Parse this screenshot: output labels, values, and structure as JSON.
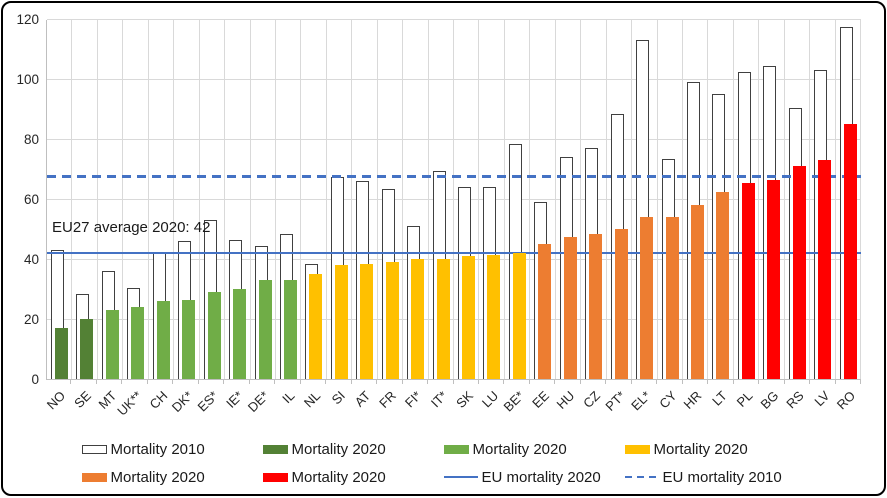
{
  "chart_data": {
    "type": "bar",
    "title": "",
    "xlabel": "",
    "ylabel": "",
    "ylim": [
      0,
      120
    ],
    "yticks": [
      0,
      20,
      40,
      60,
      80,
      100,
      120
    ],
    "grid": true,
    "annotation": {
      "text": "EU27 average 2020: 42"
    },
    "series_names": [
      "Mortality 2010",
      "Mortality 2020"
    ],
    "points": [
      {
        "label": "NO",
        "mortality_2010": 43,
        "mortality_2020": 17,
        "group": "dark_green"
      },
      {
        "label": "SE",
        "mortality_2010": 28.5,
        "mortality_2020": 20,
        "group": "dark_green"
      },
      {
        "label": "MT",
        "mortality_2010": 36,
        "mortality_2020": 23,
        "group": "green"
      },
      {
        "label": "UK**",
        "mortality_2010": 30.5,
        "mortality_2020": 24,
        "group": "green"
      },
      {
        "label": "CH",
        "mortality_2010": 42,
        "mortality_2020": 26,
        "group": "green"
      },
      {
        "label": "DK*",
        "mortality_2010": 46,
        "mortality_2020": 26.5,
        "group": "green"
      },
      {
        "label": "ES*",
        "mortality_2010": 53,
        "mortality_2020": 29,
        "group": "green"
      },
      {
        "label": "IE*",
        "mortality_2010": 46.5,
        "mortality_2020": 30,
        "group": "green"
      },
      {
        "label": "DE*",
        "mortality_2010": 44.5,
        "mortality_2020": 33,
        "group": "green"
      },
      {
        "label": "IL",
        "mortality_2010": 48.5,
        "mortality_2020": 33,
        "group": "green"
      },
      {
        "label": "NL",
        "mortality_2010": 38.5,
        "mortality_2020": 35,
        "group": "yellow"
      },
      {
        "label": "SI",
        "mortality_2010": 67.5,
        "mortality_2020": 38,
        "group": "yellow"
      },
      {
        "label": "AT",
        "mortality_2010": 66,
        "mortality_2020": 38.5,
        "group": "yellow"
      },
      {
        "label": "FR",
        "mortality_2010": 63.5,
        "mortality_2020": 39,
        "group": "yellow"
      },
      {
        "label": "FI*",
        "mortality_2010": 51,
        "mortality_2020": 40,
        "group": "yellow"
      },
      {
        "label": "IT*",
        "mortality_2010": 69.5,
        "mortality_2020": 40,
        "group": "yellow"
      },
      {
        "label": "SK",
        "mortality_2010": 64,
        "mortality_2020": 41,
        "group": "yellow"
      },
      {
        "label": "LU",
        "mortality_2010": 64,
        "mortality_2020": 41.5,
        "group": "yellow"
      },
      {
        "label": "BE*",
        "mortality_2010": 78.5,
        "mortality_2020": 42,
        "group": "yellow"
      },
      {
        "label": "EE",
        "mortality_2010": 59,
        "mortality_2020": 45,
        "group": "orange"
      },
      {
        "label": "HU",
        "mortality_2010": 74,
        "mortality_2020": 47.5,
        "group": "orange"
      },
      {
        "label": "CZ",
        "mortality_2010": 77,
        "mortality_2020": 48.5,
        "group": "orange"
      },
      {
        "label": "PT*",
        "mortality_2010": 88.5,
        "mortality_2020": 50,
        "group": "orange"
      },
      {
        "label": "EL*",
        "mortality_2010": 113,
        "mortality_2020": 54,
        "group": "orange"
      },
      {
        "label": "CY",
        "mortality_2010": 73.5,
        "mortality_2020": 54,
        "group": "orange"
      },
      {
        "label": "HR",
        "mortality_2010": 99,
        "mortality_2020": 58,
        "group": "orange"
      },
      {
        "label": "LT",
        "mortality_2010": 95,
        "mortality_2020": 62.5,
        "group": "orange"
      },
      {
        "label": "PL",
        "mortality_2010": 102.5,
        "mortality_2020": 65.5,
        "group": "red"
      },
      {
        "label": "BG",
        "mortality_2010": 104.5,
        "mortality_2020": 66.5,
        "group": "red"
      },
      {
        "label": "RS",
        "mortality_2010": 90.5,
        "mortality_2020": 71,
        "group": "red"
      },
      {
        "label": "LV",
        "mortality_2010": 103,
        "mortality_2020": 73,
        "group": "red"
      },
      {
        "label": "RO",
        "mortality_2010": 117.5,
        "mortality_2020": 85,
        "group": "red"
      }
    ],
    "reference_lines": [
      {
        "name": "EU mortality 2020",
        "value": 42,
        "style": "solid"
      },
      {
        "name": "EU mortality 2010",
        "value": 67.5,
        "style": "dashed"
      }
    ],
    "colors": {
      "bar_outline": "#404040",
      "dark_green": "#538135",
      "green": "#70AD47",
      "yellow": "#FFC000",
      "orange": "#ED7D31",
      "red": "#FF0000",
      "line_blue": "#4472C4",
      "gridline": "#D9D9D9"
    },
    "legend_position": "bottom"
  },
  "legend": {
    "row1": [
      {
        "label": "Mortality 2010",
        "swatch": "box2010",
        "color": "#FFFFFF"
      },
      {
        "label": "Mortality 2020",
        "swatch": "fill",
        "color": "#538135"
      },
      {
        "label": "Mortality 2020",
        "swatch": "fill",
        "color": "#70AD47"
      },
      {
        "label": "Mortality 2020",
        "swatch": "fill",
        "color": "#FFC000"
      }
    ],
    "row2": [
      {
        "label": "Mortality 2020",
        "swatch": "fill",
        "color": "#ED7D31"
      },
      {
        "label": "Mortality 2020",
        "swatch": "fill",
        "color": "#FF0000"
      },
      {
        "label": "EU mortality 2020",
        "swatch": "line",
        "color": "#4472C4"
      },
      {
        "label": "EU mortality 2010",
        "swatch": "dashes",
        "color": "#4472C4"
      }
    ]
  }
}
